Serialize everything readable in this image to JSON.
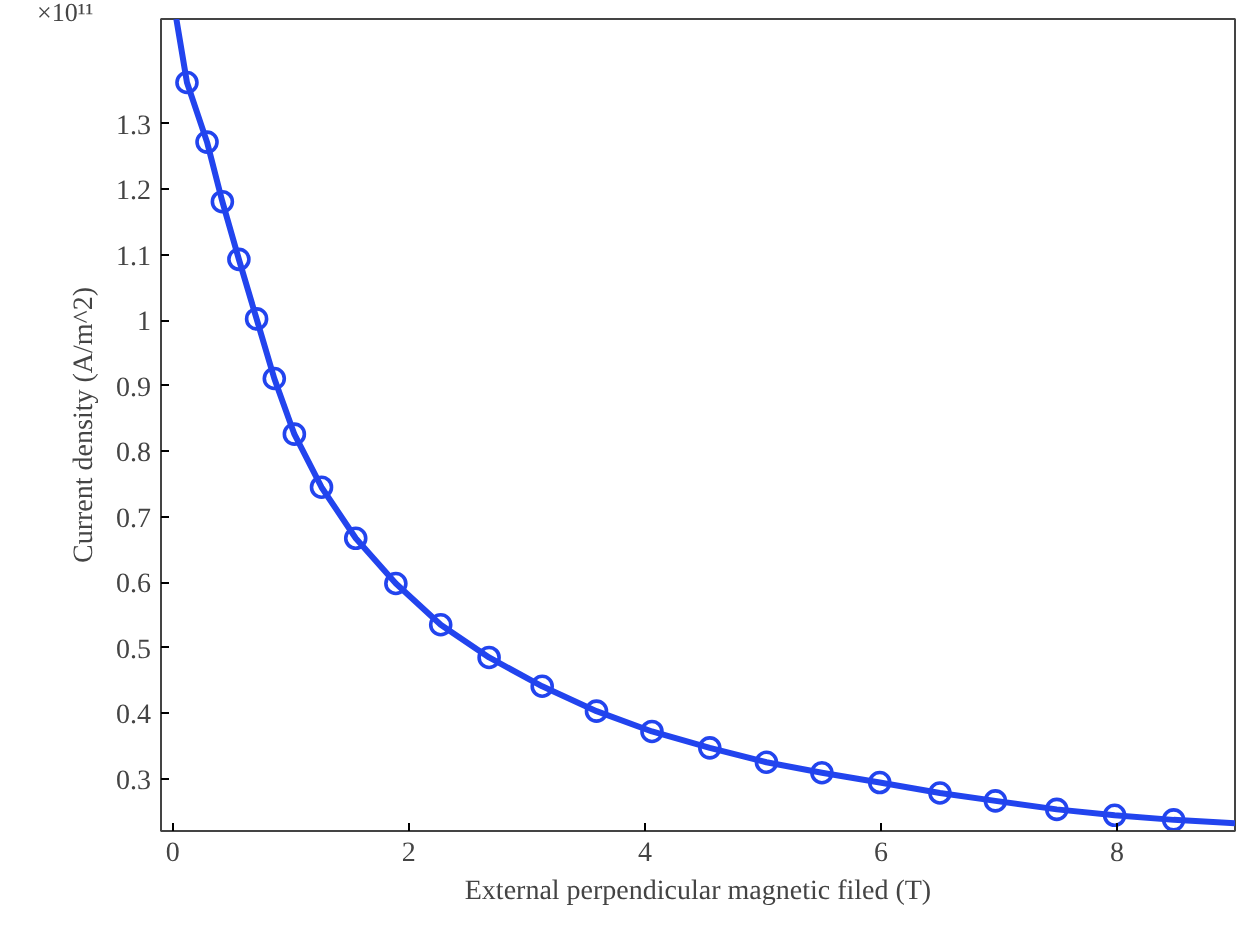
{
  "chart_data": {
    "type": "line",
    "xlabel": "External perpendicular magnetic filed (T)",
    "ylabel": "Current density (A/m^2)",
    "annotations": [
      "×10¹¹"
    ],
    "xlim": [
      -0.1,
      9
    ],
    "xticks": [
      0,
      2,
      4,
      6,
      8
    ],
    "ylim": [
      0.22,
      1.46
    ],
    "yticks": [
      0.3,
      0.4,
      0.5,
      0.6,
      0.7,
      0.8,
      0.9,
      1,
      1.1,
      1.2,
      1.3
    ],
    "grid": false,
    "series": [
      {
        "marker": "none",
        "color": "#2244ee",
        "x": [
          0.03,
          0.12,
          0.29,
          0.42,
          0.56,
          0.71,
          0.86,
          1.03,
          1.26,
          1.55,
          1.89,
          2.27,
          2.68,
          3.13,
          3.59,
          4.06,
          4.55,
          5.03,
          5.5,
          5.99,
          6.5,
          6.97,
          7.49,
          7.98,
          8.48,
          9.0
        ],
        "values": [
          1.46,
          1.363,
          1.272,
          1.181,
          1.093,
          1.002,
          0.911,
          0.826,
          0.745,
          0.667,
          0.598,
          0.535,
          0.485,
          0.441,
          0.403,
          0.372,
          0.347,
          0.325,
          0.309,
          0.294,
          0.278,
          0.266,
          0.253,
          0.244,
          0.237,
          0.232
        ]
      },
      {
        "type": "scatter",
        "marker": "circle",
        "color": "#2244ee",
        "x": [
          0.12,
          0.29,
          0.42,
          0.56,
          0.71,
          0.86,
          1.03,
          1.26,
          1.55,
          1.89,
          2.27,
          2.68,
          3.13,
          3.59,
          4.06,
          4.55,
          5.03,
          5.5,
          5.99,
          6.5,
          6.97,
          7.49,
          7.98,
          8.48
        ],
        "values": [
          1.363,
          1.272,
          1.181,
          1.093,
          1.002,
          0.911,
          0.826,
          0.745,
          0.667,
          0.598,
          0.535,
          0.485,
          0.441,
          0.403,
          0.372,
          0.347,
          0.325,
          0.309,
          0.294,
          0.278,
          0.266,
          0.253,
          0.244,
          0.237
        ]
      }
    ]
  }
}
